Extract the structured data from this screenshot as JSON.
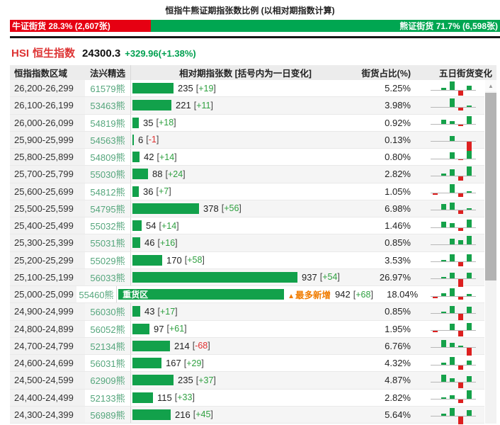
{
  "header": {
    "title": "恒指牛熊证期指张数比例 (以相对期指数计算)",
    "bull": {
      "label": "牛证街货 28.3% (2,607张)",
      "pct": 28.3
    },
    "bear": {
      "label": "熊证街货 71.7% (6,598张)",
      "pct": 71.7
    }
  },
  "index": {
    "symbol": "HSI",
    "name": "恒生指数",
    "value": "24300.3",
    "change": "+329.96(+1.38%)"
  },
  "icons": {
    "up_triangle": "▲",
    "scroll_up_arrow": "▲"
  },
  "brackets": {
    "open": "[",
    "close": "]"
  },
  "colors": {
    "bull_red": "#e60012",
    "bear_green": "#00a651",
    "bar_green": "#12a14b",
    "change_up": "#2fa040",
    "change_down": "#e03030",
    "code_green": "#55a67c",
    "highlight_orange": "#f07c00"
  },
  "table": {
    "columns": [
      "恒指指数区域",
      "法兴精选",
      "相对期指张数 [括号内为一日变化]",
      "街货占比(%)",
      "五日街货变化"
    ],
    "max_value": 942,
    "rows": [
      {
        "range": "26,200-26,299",
        "code": "61579熊",
        "value": 235,
        "change": "+19",
        "dir": "up",
        "pct": "5.25%",
        "spark": [
          0,
          0.5,
          2.2,
          -1.3,
          1.0
        ]
      },
      {
        "range": "26,100-26,199",
        "code": "53463熊",
        "value": 221,
        "change": "+11",
        "dir": "up",
        "pct": "3.98%",
        "spark": [
          0,
          0,
          2.2,
          -0.8,
          0.4
        ]
      },
      {
        "range": "26,000-26,099",
        "code": "54819熊",
        "value": 35,
        "change": "+18",
        "dir": "up",
        "pct": "0.92%",
        "spark": [
          0,
          1.2,
          0.7,
          -0.3,
          2.0
        ]
      },
      {
        "range": "25,900-25,999",
        "code": "54563熊",
        "value": 6,
        "change": "-1",
        "dir": "down",
        "pct": "0.13%",
        "spark": [
          0,
          0,
          1.4,
          0,
          -2.6
        ]
      },
      {
        "range": "25,800-25,899",
        "code": "54809熊",
        "value": 42,
        "change": "+14",
        "dir": "up",
        "pct": "0.80%",
        "spark": [
          0,
          0,
          1.6,
          -0.3,
          2.0
        ]
      },
      {
        "range": "25,700-25,799",
        "code": "55030熊",
        "value": 88,
        "change": "+24",
        "dir": "up",
        "pct": "2.82%",
        "spark": [
          0,
          0.6,
          1.6,
          -1.2,
          2.3
        ]
      },
      {
        "range": "25,600-25,699",
        "code": "54812熊",
        "value": 36,
        "change": "+7",
        "dir": "up",
        "pct": "1.05%",
        "spark": [
          -0.3,
          0,
          2.2,
          -0.8,
          0.4
        ]
      },
      {
        "range": "25,500-25,599",
        "code": "54795熊",
        "value": 378,
        "change": "+56",
        "dir": "up",
        "pct": "6.98%",
        "spark": [
          0,
          1.5,
          1.9,
          -0.8,
          0.5
        ]
      },
      {
        "range": "25,400-25,499",
        "code": "55032熊",
        "value": 54,
        "change": "+14",
        "dir": "up",
        "pct": "1.46%",
        "spark": [
          0,
          1.3,
          1.1,
          -0.8,
          1.9
        ]
      },
      {
        "range": "25,300-25,399",
        "code": "55031熊",
        "value": 46,
        "change": "+16",
        "dir": "up",
        "pct": "0.85%",
        "spark": [
          0,
          0,
          1.5,
          1.1,
          2.1
        ]
      },
      {
        "range": "25,200-25,299",
        "code": "55029熊",
        "value": 170,
        "change": "+58",
        "dir": "up",
        "pct": "3.53%",
        "spark": [
          0,
          0.4,
          1.9,
          -1.0,
          1.9
        ]
      },
      {
        "range": "25,100-25,199",
        "code": "56033熊",
        "value": 937,
        "change": "+54",
        "dir": "up",
        "pct": "26.97%",
        "spark": [
          0,
          0.4,
          1.6,
          -2.0,
          1.6
        ]
      },
      {
        "range": "25,000-25,099",
        "code": "55460熊",
        "value": 942,
        "change": "+68",
        "dir": "up",
        "pct": "18.04%",
        "spark": [
          -0.4,
          0.7,
          1.9,
          -0.8,
          0.4
        ],
        "tag": "重货区",
        "note": "最多新增"
      },
      {
        "range": "24,900-24,999",
        "code": "56030熊",
        "value": 43,
        "change": "+17",
        "dir": "up",
        "pct": "0.85%",
        "spark": [
          0,
          0.4,
          1.8,
          -1.6,
          1.6
        ]
      },
      {
        "range": "24,800-24,899",
        "code": "56052熊",
        "value": 97,
        "change": "+61",
        "dir": "up",
        "pct": "1.95%",
        "spark": [
          -0.4,
          0,
          1.6,
          -1.4,
          1.8
        ]
      },
      {
        "range": "24,700-24,799",
        "code": "52134熊",
        "value": 214,
        "change": "-68",
        "dir": "down",
        "pct": "6.76%",
        "spark": [
          0,
          1.8,
          1.2,
          0.4,
          -2.0
        ]
      },
      {
        "range": "24,600-24,699",
        "code": "56031熊",
        "value": 167,
        "change": "+29",
        "dir": "up",
        "pct": "4.32%",
        "spark": [
          0,
          0.4,
          2.0,
          -1.1,
          1.1
        ]
      },
      {
        "range": "24,500-24,599",
        "code": "62909熊",
        "value": 235,
        "change": "+37",
        "dir": "up",
        "pct": "4.87%",
        "spark": [
          0,
          1.8,
          0.9,
          -1.4,
          1.4
        ]
      },
      {
        "range": "24,400-24,499",
        "code": "52133熊",
        "value": 115,
        "change": "+33",
        "dir": "up",
        "pct": "2.82%",
        "spark": [
          0,
          0.3,
          0.9,
          -0.9,
          2.2
        ]
      },
      {
        "range": "24,300-24,399",
        "code": "56989熊",
        "value": 216,
        "change": "+45",
        "dir": "up",
        "pct": "5.64%",
        "spark": [
          0,
          0.7,
          2.0,
          -2.0,
          1.6
        ]
      }
    ]
  }
}
